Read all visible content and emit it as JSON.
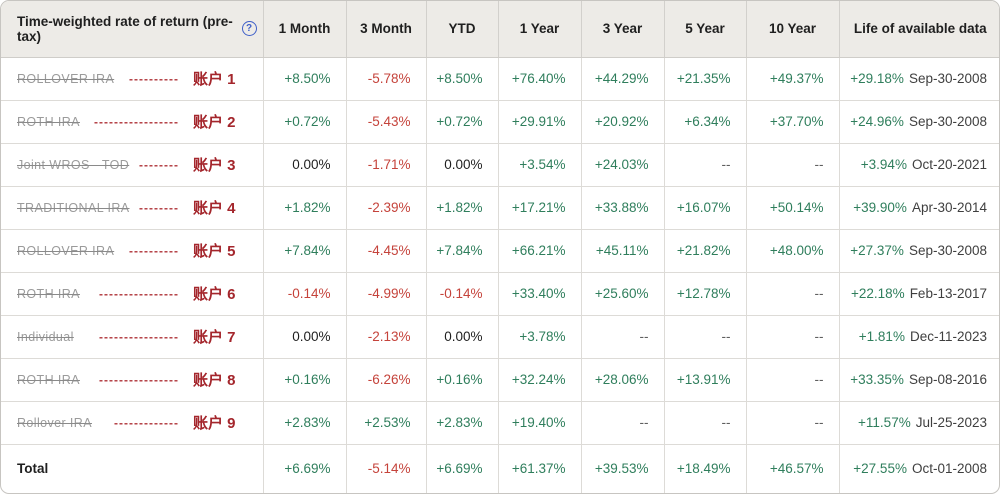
{
  "header": {
    "title": "Time-weighted rate of return (pre-tax)",
    "help_icon": "?",
    "columns": [
      "1 Month",
      "3 Month",
      "YTD",
      "1 Year",
      "3 Year",
      "5 Year",
      "10 Year",
      "Life of available data"
    ]
  },
  "rows": [
    {
      "name": "ROLLOVER IRA",
      "dashes": "----------",
      "label": "账户 1",
      "values": [
        {
          "text": "+8.50%",
          "tone": "pos"
        },
        {
          "text": "-5.78%",
          "tone": "neg"
        },
        {
          "text": "+8.50%",
          "tone": "pos"
        },
        {
          "text": "+76.40%",
          "tone": "pos"
        },
        {
          "text": "+44.29%",
          "tone": "pos"
        },
        {
          "text": "+21.35%",
          "tone": "pos"
        },
        {
          "text": "+49.37%",
          "tone": "pos"
        }
      ],
      "life": {
        "value": "+29.18%",
        "tone": "pos",
        "date": "Sep-30-2008"
      }
    },
    {
      "name": "ROTH IRA",
      "dashes": "-----------------",
      "label": "账户 2",
      "values": [
        {
          "text": "+0.72%",
          "tone": "pos"
        },
        {
          "text": "-5.43%",
          "tone": "neg"
        },
        {
          "text": "+0.72%",
          "tone": "pos"
        },
        {
          "text": "+29.91%",
          "tone": "pos"
        },
        {
          "text": "+20.92%",
          "tone": "pos"
        },
        {
          "text": "+6.34%",
          "tone": "pos"
        },
        {
          "text": "+37.70%",
          "tone": "pos"
        }
      ],
      "life": {
        "value": "+24.96%",
        "tone": "pos",
        "date": "Sep-30-2008"
      }
    },
    {
      "name": "Joint WROS - TOD",
      "dashes": "--------",
      "label": "账户 3",
      "values": [
        {
          "text": "0.00%",
          "tone": "zero"
        },
        {
          "text": "-1.71%",
          "tone": "neg"
        },
        {
          "text": "0.00%",
          "tone": "zero"
        },
        {
          "text": "+3.54%",
          "tone": "pos"
        },
        {
          "text": "+24.03%",
          "tone": "pos"
        },
        {
          "text": "--",
          "tone": "na"
        },
        {
          "text": "--",
          "tone": "na"
        }
      ],
      "life": {
        "value": "+3.94%",
        "tone": "pos",
        "date": "Oct-20-2021"
      }
    },
    {
      "name": "TRADITIONAL IRA",
      "dashes": "--------",
      "label": "账户 4",
      "values": [
        {
          "text": "+1.82%",
          "tone": "pos"
        },
        {
          "text": "-2.39%",
          "tone": "neg"
        },
        {
          "text": "+1.82%",
          "tone": "pos"
        },
        {
          "text": "+17.21%",
          "tone": "pos"
        },
        {
          "text": "+33.88%",
          "tone": "pos"
        },
        {
          "text": "+16.07%",
          "tone": "pos"
        },
        {
          "text": "+50.14%",
          "tone": "pos"
        }
      ],
      "life": {
        "value": "+39.90%",
        "tone": "pos",
        "date": "Apr-30-2014"
      }
    },
    {
      "name": "ROLLOVER IRA",
      "dashes": "----------",
      "label": "账户 5",
      "values": [
        {
          "text": "+7.84%",
          "tone": "pos"
        },
        {
          "text": "-4.45%",
          "tone": "neg"
        },
        {
          "text": "+7.84%",
          "tone": "pos"
        },
        {
          "text": "+66.21%",
          "tone": "pos"
        },
        {
          "text": "+45.11%",
          "tone": "pos"
        },
        {
          "text": "+21.82%",
          "tone": "pos"
        },
        {
          "text": "+48.00%",
          "tone": "pos"
        }
      ],
      "life": {
        "value": "+27.37%",
        "tone": "pos",
        "date": "Sep-30-2008"
      }
    },
    {
      "name": "ROTH IRA",
      "dashes": "----------------",
      "label": "账户 6",
      "values": [
        {
          "text": "-0.14%",
          "tone": "neg"
        },
        {
          "text": "-4.99%",
          "tone": "neg"
        },
        {
          "text": "-0.14%",
          "tone": "neg"
        },
        {
          "text": "+33.40%",
          "tone": "pos"
        },
        {
          "text": "+25.60%",
          "tone": "pos"
        },
        {
          "text": "+12.78%",
          "tone": "pos"
        },
        {
          "text": "--",
          "tone": "na"
        }
      ],
      "life": {
        "value": "+22.18%",
        "tone": "pos",
        "date": "Feb-13-2017"
      }
    },
    {
      "name": "Individual",
      "dashes": "----------------",
      "label": "账户 7",
      "values": [
        {
          "text": "0.00%",
          "tone": "zero"
        },
        {
          "text": "-2.13%",
          "tone": "neg"
        },
        {
          "text": "0.00%",
          "tone": "zero"
        },
        {
          "text": "+3.78%",
          "tone": "pos"
        },
        {
          "text": "--",
          "tone": "na"
        },
        {
          "text": "--",
          "tone": "na"
        },
        {
          "text": "--",
          "tone": "na"
        }
      ],
      "life": {
        "value": "+1.81%",
        "tone": "pos",
        "date": "Dec-11-2023"
      }
    },
    {
      "name": "ROTH IRA",
      "dashes": "----------------",
      "label": "账户 8",
      "values": [
        {
          "text": "+0.16%",
          "tone": "pos"
        },
        {
          "text": "-6.26%",
          "tone": "neg"
        },
        {
          "text": "+0.16%",
          "tone": "pos"
        },
        {
          "text": "+32.24%",
          "tone": "pos"
        },
        {
          "text": "+28.06%",
          "tone": "pos"
        },
        {
          "text": "+13.91%",
          "tone": "pos"
        },
        {
          "text": "--",
          "tone": "na"
        }
      ],
      "life": {
        "value": "+33.35%",
        "tone": "pos",
        "date": "Sep-08-2016"
      }
    },
    {
      "name": "Rollover IRA",
      "dashes": "-------------",
      "label": "账户 9",
      "values": [
        {
          "text": "+2.83%",
          "tone": "pos"
        },
        {
          "text": "+2.53%",
          "tone": "pos"
        },
        {
          "text": "+2.83%",
          "tone": "pos"
        },
        {
          "text": "+19.40%",
          "tone": "pos"
        },
        {
          "text": "--",
          "tone": "na"
        },
        {
          "text": "--",
          "tone": "na"
        },
        {
          "text": "--",
          "tone": "na"
        }
      ],
      "life": {
        "value": "+11.57%",
        "tone": "pos",
        "date": "Jul-25-2023"
      }
    }
  ],
  "total": {
    "label": "Total",
    "values": [
      {
        "text": "+6.69%",
        "tone": "pos"
      },
      {
        "text": "-5.14%",
        "tone": "neg"
      },
      {
        "text": "+6.69%",
        "tone": "pos"
      },
      {
        "text": "+61.37%",
        "tone": "pos"
      },
      {
        "text": "+39.53%",
        "tone": "pos"
      },
      {
        "text": "+18.49%",
        "tone": "pos"
      },
      {
        "text": "+46.57%",
        "tone": "pos"
      }
    ],
    "life": {
      "value": "+27.55%",
      "tone": "pos",
      "date": "Oct-01-2008"
    }
  },
  "colors": {
    "positive": "#2f7e5c",
    "negative": "#c5433b",
    "account_label": "#a4262c",
    "header_bg": "#edebe7",
    "help_icon": "#3f5fc8"
  }
}
